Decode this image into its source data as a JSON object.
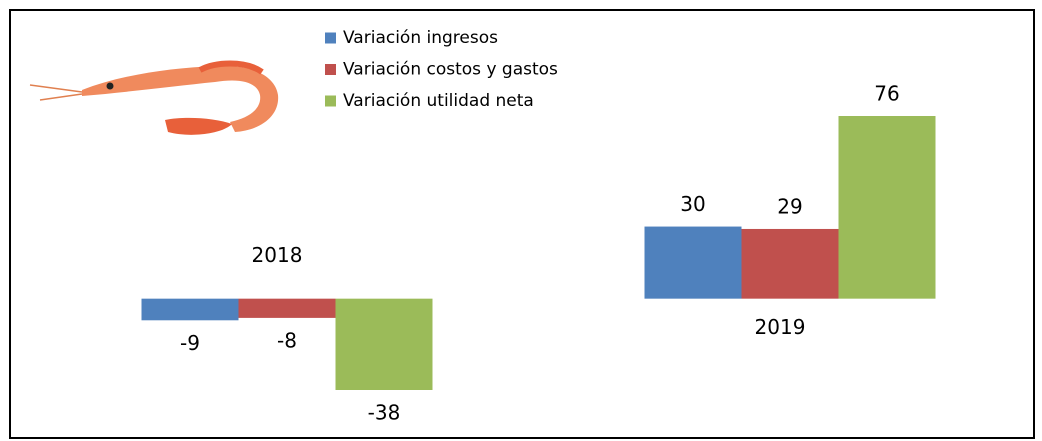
{
  "chart_data": {
    "type": "bar",
    "categories": [
      "2018",
      "2019"
    ],
    "series": [
      {
        "name": "Variación ingresos",
        "color": "#4f81bd",
        "values": [
          -9,
          30
        ]
      },
      {
        "name": "Variación costos y gastos",
        "color": "#c0504d",
        "values": [
          -8,
          29
        ]
      },
      {
        "name": "Variación utilidad neta",
        "color": "#9bbb59",
        "values": [
          -38,
          76
        ]
      }
    ]
  }
}
